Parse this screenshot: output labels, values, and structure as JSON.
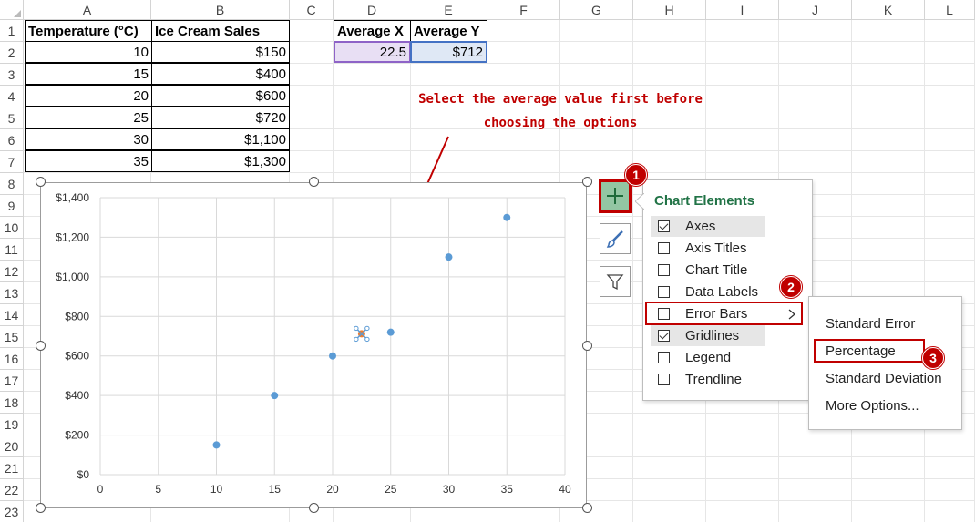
{
  "columns": [
    "A",
    "B",
    "C",
    "D",
    "E",
    "F",
    "G",
    "H",
    "I",
    "J",
    "K",
    "L"
  ],
  "rows": [
    "1",
    "2",
    "3",
    "4",
    "5",
    "6",
    "7",
    "8",
    "9",
    "10",
    "11",
    "12",
    "13",
    "14",
    "15",
    "16",
    "17",
    "18",
    "19",
    "20",
    "21",
    "22",
    "23"
  ],
  "table": {
    "header_temp": "Temperature (°C)",
    "header_sales": "Ice Cream Sales",
    "rows": [
      {
        "temp": "10",
        "sales": "$150"
      },
      {
        "temp": "15",
        "sales": "$400"
      },
      {
        "temp": "20",
        "sales": "$600"
      },
      {
        "temp": "25",
        "sales": "$720"
      },
      {
        "temp": "30",
        "sales": "$1,100"
      },
      {
        "temp": "35",
        "sales": "$1,300"
      }
    ]
  },
  "averages": {
    "header_x": "Average X",
    "header_y": "Average Y",
    "value_x": "22.5",
    "value_y": "$712"
  },
  "annotation": {
    "line1": "Select the average value first before",
    "line2": "choosing the options",
    "color": "#c00000"
  },
  "chart_data": {
    "type": "scatter",
    "title": "",
    "xlabel": "",
    "ylabel": "",
    "xlim": [
      0,
      40
    ],
    "ylim": [
      0,
      1400
    ],
    "x_ticks": [
      "0",
      "5",
      "10",
      "15",
      "20",
      "25",
      "30",
      "35",
      "40"
    ],
    "y_ticks": [
      "$0",
      "$200",
      "$400",
      "$600",
      "$800",
      "$1,000",
      "$1,200",
      "$1,400"
    ],
    "grid": true,
    "legend": "none",
    "series": [
      {
        "points": [
          {
            "x": 10,
            "y": 150
          },
          {
            "x": 15,
            "y": 400
          },
          {
            "x": 20,
            "y": 600
          },
          {
            "x": 25,
            "y": 720
          },
          {
            "x": 30,
            "y": 1100
          },
          {
            "x": 35,
            "y": 1300
          }
        ],
        "color": "#5b9bd5"
      },
      {
        "points": [
          {
            "x": 22.5,
            "y": 712
          }
        ],
        "color": "#ed7d31",
        "selected": true
      }
    ]
  },
  "side_buttons": {
    "add_icon": "plus-icon",
    "style_icon": "paintbrush-icon",
    "filter_icon": "funnel-icon"
  },
  "chart_elements": {
    "title": "Chart Elements",
    "items": [
      {
        "label": "Axes",
        "checked": true
      },
      {
        "label": "Axis Titles",
        "checked": false
      },
      {
        "label": "Chart Title",
        "checked": false
      },
      {
        "label": "Data Labels",
        "checked": false
      },
      {
        "label": "Error Bars",
        "checked": false
      },
      {
        "label": "Gridlines",
        "checked": true
      },
      {
        "label": "Legend",
        "checked": false
      },
      {
        "label": "Trendline",
        "checked": false
      }
    ]
  },
  "error_bars_menu": {
    "items": [
      "Standard Error",
      "Percentage",
      "Standard Deviation",
      "More Options..."
    ]
  },
  "badges": [
    "1",
    "2",
    "3"
  ]
}
